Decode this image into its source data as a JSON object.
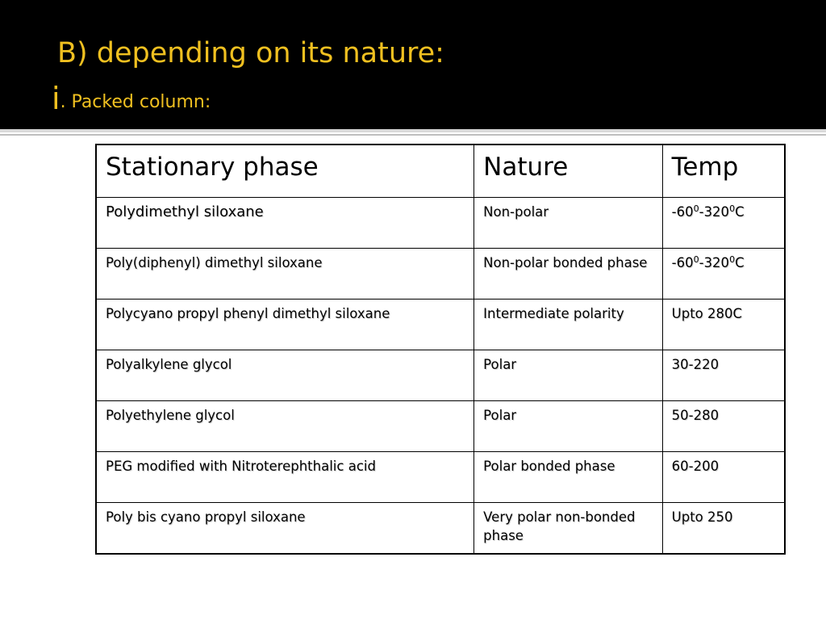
{
  "slide": {
    "title": "B) depending on its nature:",
    "subtitle_numeral": "i",
    "subtitle_text": ". Packed column:"
  },
  "table": {
    "headers": [
      "Stationary phase",
      "Nature",
      "Temp"
    ],
    "rows": [
      {
        "phase": "Polydimethyl siloxane",
        "nature": "Non-polar",
        "temp": {
          "a": "-60",
          "a_sup": "0",
          "b": "-320",
          "b_sup": "0",
          "unit": "C"
        }
      },
      {
        "phase": "Poly(diphenyl) dimethyl siloxane",
        "nature": "Non-polar bonded phase",
        "temp": {
          "a": "-60",
          "a_sup": "0",
          "b": "-320",
          "b_sup": "0",
          "unit": "C"
        }
      },
      {
        "phase": "Polycyano propyl phenyl dimethyl siloxane",
        "nature": "Intermediate polarity",
        "temp": "Upto 280C"
      },
      {
        "phase": "Polyalkylene glycol",
        "nature": "Polar",
        "temp": "30-220"
      },
      {
        "phase": "Polyethylene glycol",
        "nature": "Polar",
        "temp": "50-280"
      },
      {
        "phase": "PEG modified with Nitroterephthalic acid",
        "nature": "Polar bonded phase",
        "temp": "60-200"
      },
      {
        "phase": "Poly bis cyano propyl siloxane",
        "nature": "Very polar non-bonded phase",
        "temp": "Upto 250"
      }
    ]
  },
  "colors": {
    "background": "#000000",
    "title": "#f0c020",
    "table_text": "#000000"
  }
}
